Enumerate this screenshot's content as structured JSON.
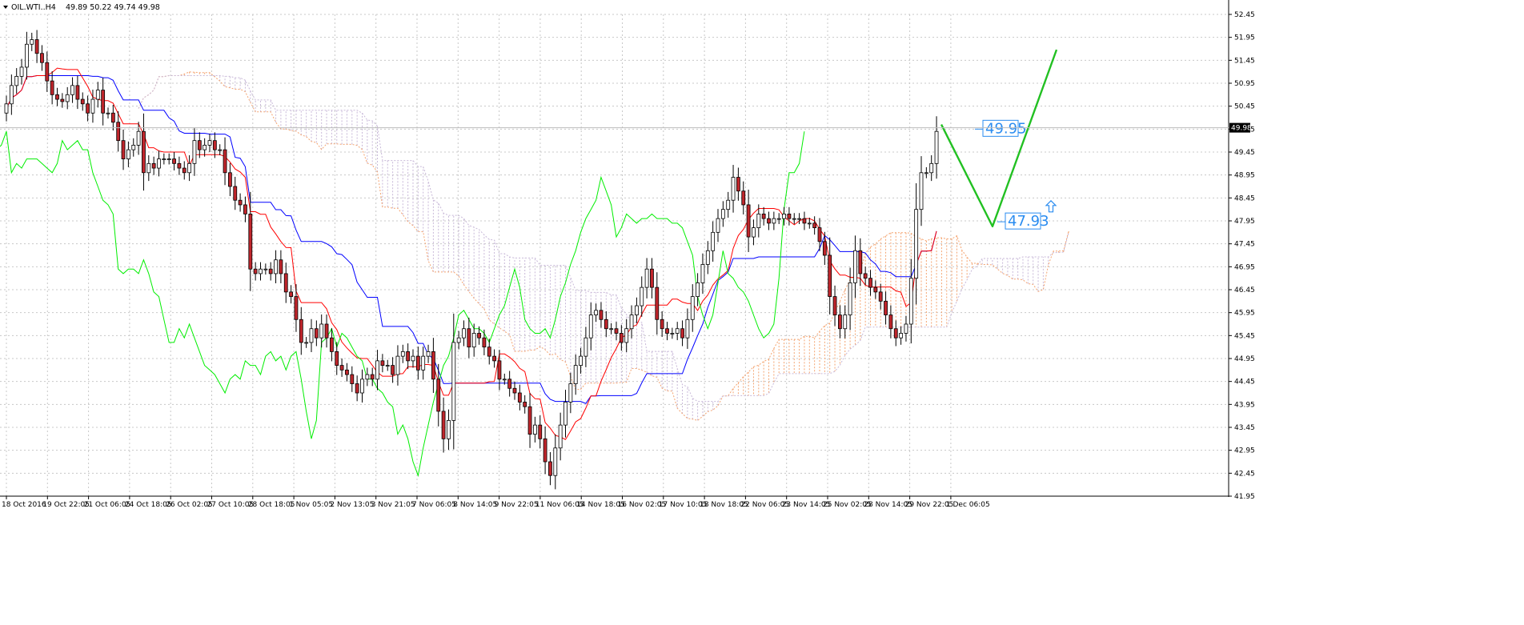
{
  "header": {
    "symbol": "OIL.WTI..H4",
    "ohlc": "49.89 50.22 49.74 49.98",
    "dropdown_icon": "triangle-down-icon"
  },
  "colors": {
    "background": "#ffffff",
    "grid": "#c8c8c8",
    "bull_candle": "#ffffff",
    "bear_candle": "#c0262c",
    "wick": "#000000",
    "tenkan": "#ff0000",
    "kijun": "#0000ff",
    "chikou": "#00ee00",
    "senkou_a_cloud": "#f4a470",
    "senkou_b_cloud": "#c8b8d8",
    "forecast": "#22c022",
    "annotation": "#2a8cf0",
    "current_price_bg": "#000000",
    "current_price_fg": "#ffffff"
  },
  "annotations": {
    "price_high": "49.95",
    "price_low": "47.93",
    "up_arrow_icon": "up-arrow-icon"
  },
  "chart_data": {
    "type": "candlestick",
    "symbol": "OIL.WTI",
    "timeframe": "H4",
    "current_price": "49.98",
    "ylim": [
      41.95,
      52.45
    ],
    "y_ticks": [
      "52.45",
      "51.95",
      "51.45",
      "50.95",
      "50.45",
      "49.95",
      "49.45",
      "48.95",
      "48.45",
      "47.95",
      "47.45",
      "46.95",
      "46.45",
      "45.95",
      "45.45",
      "44.95",
      "44.45",
      "43.95",
      "43.45",
      "42.95",
      "42.45",
      "41.95"
    ],
    "x_ticks": [
      "18 Oct 2016",
      "19 Oct 22:05",
      "21 Oct 06:05",
      "24 Oct 18:05",
      "26 Oct 02:05",
      "27 Oct 10:05",
      "28 Oct 18:05",
      "1 Nov 05:05",
      "2 Nov 13:05",
      "3 Nov 21:05",
      "7 Nov 06:05",
      "8 Nov 14:05",
      "9 Nov 22:05",
      "11 Nov 06:05",
      "14 Nov 18:05",
      "16 Nov 02:05",
      "17 Nov 10:05",
      "18 Nov 18:05",
      "22 Nov 06:05",
      "23 Nov 14:05",
      "25 Nov 02:05",
      "28 Nov 14:05",
      "29 Nov 22:05",
      "1 Dec 06:05"
    ],
    "closes": [
      50.5,
      50.9,
      51.1,
      51.3,
      51.8,
      51.9,
      51.6,
      51.4,
      51.0,
      50.7,
      50.6,
      50.55,
      50.7,
      50.9,
      50.6,
      50.5,
      50.3,
      50.6,
      50.8,
      50.3,
      50.3,
      50.1,
      49.7,
      49.3,
      49.5,
      49.6,
      49.9,
      49.0,
      49.2,
      49.1,
      49.3,
      49.3,
      49.3,
      49.2,
      49.1,
      49.0,
      49.2,
      49.7,
      49.5,
      49.6,
      49.7,
      49.5,
      49.5,
      49.0,
      48.7,
      48.4,
      48.3,
      48.1,
      46.9,
      46.8,
      46.9,
      46.9,
      46.8,
      47.1,
      46.8,
      46.4,
      46.3,
      45.8,
      45.3,
      45.3,
      45.6,
      45.4,
      45.7,
      45.4,
      45.1,
      44.8,
      44.7,
      44.6,
      44.4,
      44.2,
      44.5,
      44.6,
      44.5,
      44.9,
      44.8,
      44.8,
      44.6,
      45.0,
      45.1,
      44.9,
      45.0,
      44.7,
      45.0,
      45.1,
      44.5,
      43.8,
      43.2,
      43.6,
      45.3,
      45.4,
      45.6,
      45.2,
      45.5,
      45.4,
      45.2,
      45.0,
      44.9,
      44.5,
      44.5,
      44.3,
      44.2,
      44.0,
      43.9,
      43.3,
      43.5,
      43.2,
      42.7,
      42.4,
      43.0,
      43.5,
      44.0,
      44.4,
      44.8,
      45.0,
      45.4,
      45.9,
      46.0,
      45.8,
      45.6,
      45.6,
      45.5,
      45.3,
      45.6,
      45.9,
      46.1,
      46.5,
      46.9,
      46.5,
      45.8,
      45.6,
      45.5,
      45.5,
      45.6,
      45.4,
      45.8,
      46.3,
      46.6,
      47.0,
      47.3,
      47.7,
      48.0,
      48.2,
      48.4,
      48.9,
      48.6,
      48.3,
      47.6,
      47.8,
      48.1,
      48.0,
      47.9,
      48.0,
      48.0,
      48.1,
      48.0,
      48.0,
      48.0,
      47.9,
      47.9,
      47.8,
      47.5,
      47.2,
      46.3,
      45.9,
      45.6,
      45.9,
      46.6,
      47.3,
      46.8,
      46.7,
      46.5,
      46.4,
      46.2,
      45.9,
      45.6,
      45.4,
      45.5,
      45.7,
      46.7,
      48.2,
      49.0,
      49.0,
      49.2,
      49.9
    ]
  }
}
